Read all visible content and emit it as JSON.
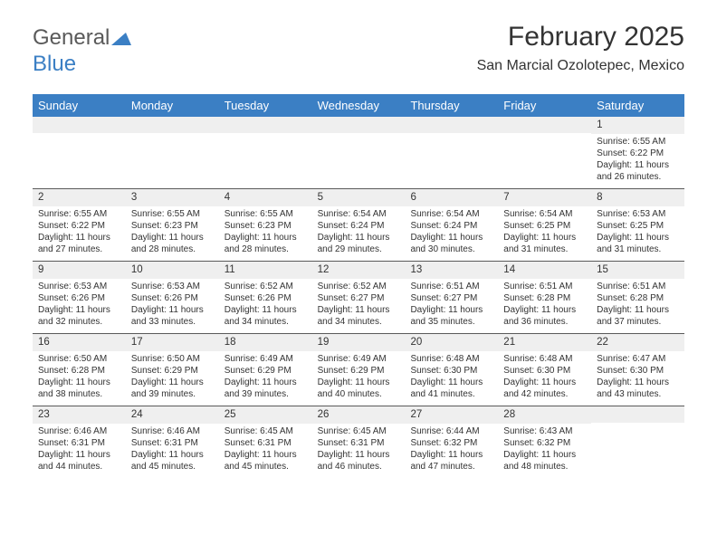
{
  "logo": {
    "text_gray": "General",
    "text_blue": "Blue"
  },
  "header": {
    "month_title": "February 2025",
    "location": "San Marcial Ozolotepec, Mexico"
  },
  "colors": {
    "header_bg": "#3b7fc4",
    "header_text": "#ffffff",
    "daynum_bg": "#efefef",
    "border": "#5a5a5a",
    "text": "#333333",
    "logo_gray": "#5a5a5a",
    "logo_blue": "#3b7fc4"
  },
  "day_names": [
    "Sunday",
    "Monday",
    "Tuesday",
    "Wednesday",
    "Thursday",
    "Friday",
    "Saturday"
  ],
  "weeks": [
    [
      {
        "n": "",
        "sr": "",
        "ss": "",
        "dl": ""
      },
      {
        "n": "",
        "sr": "",
        "ss": "",
        "dl": ""
      },
      {
        "n": "",
        "sr": "",
        "ss": "",
        "dl": ""
      },
      {
        "n": "",
        "sr": "",
        "ss": "",
        "dl": ""
      },
      {
        "n": "",
        "sr": "",
        "ss": "",
        "dl": ""
      },
      {
        "n": "",
        "sr": "",
        "ss": "",
        "dl": ""
      },
      {
        "n": "1",
        "sr": "Sunrise: 6:55 AM",
        "ss": "Sunset: 6:22 PM",
        "dl": "Daylight: 11 hours and 26 minutes."
      }
    ],
    [
      {
        "n": "2",
        "sr": "Sunrise: 6:55 AM",
        "ss": "Sunset: 6:22 PM",
        "dl": "Daylight: 11 hours and 27 minutes."
      },
      {
        "n": "3",
        "sr": "Sunrise: 6:55 AM",
        "ss": "Sunset: 6:23 PM",
        "dl": "Daylight: 11 hours and 28 minutes."
      },
      {
        "n": "4",
        "sr": "Sunrise: 6:55 AM",
        "ss": "Sunset: 6:23 PM",
        "dl": "Daylight: 11 hours and 28 minutes."
      },
      {
        "n": "5",
        "sr": "Sunrise: 6:54 AM",
        "ss": "Sunset: 6:24 PM",
        "dl": "Daylight: 11 hours and 29 minutes."
      },
      {
        "n": "6",
        "sr": "Sunrise: 6:54 AM",
        "ss": "Sunset: 6:24 PM",
        "dl": "Daylight: 11 hours and 30 minutes."
      },
      {
        "n": "7",
        "sr": "Sunrise: 6:54 AM",
        "ss": "Sunset: 6:25 PM",
        "dl": "Daylight: 11 hours and 31 minutes."
      },
      {
        "n": "8",
        "sr": "Sunrise: 6:53 AM",
        "ss": "Sunset: 6:25 PM",
        "dl": "Daylight: 11 hours and 31 minutes."
      }
    ],
    [
      {
        "n": "9",
        "sr": "Sunrise: 6:53 AM",
        "ss": "Sunset: 6:26 PM",
        "dl": "Daylight: 11 hours and 32 minutes."
      },
      {
        "n": "10",
        "sr": "Sunrise: 6:53 AM",
        "ss": "Sunset: 6:26 PM",
        "dl": "Daylight: 11 hours and 33 minutes."
      },
      {
        "n": "11",
        "sr": "Sunrise: 6:52 AM",
        "ss": "Sunset: 6:26 PM",
        "dl": "Daylight: 11 hours and 34 minutes."
      },
      {
        "n": "12",
        "sr": "Sunrise: 6:52 AM",
        "ss": "Sunset: 6:27 PM",
        "dl": "Daylight: 11 hours and 34 minutes."
      },
      {
        "n": "13",
        "sr": "Sunrise: 6:51 AM",
        "ss": "Sunset: 6:27 PM",
        "dl": "Daylight: 11 hours and 35 minutes."
      },
      {
        "n": "14",
        "sr": "Sunrise: 6:51 AM",
        "ss": "Sunset: 6:28 PM",
        "dl": "Daylight: 11 hours and 36 minutes."
      },
      {
        "n": "15",
        "sr": "Sunrise: 6:51 AM",
        "ss": "Sunset: 6:28 PM",
        "dl": "Daylight: 11 hours and 37 minutes."
      }
    ],
    [
      {
        "n": "16",
        "sr": "Sunrise: 6:50 AM",
        "ss": "Sunset: 6:28 PM",
        "dl": "Daylight: 11 hours and 38 minutes."
      },
      {
        "n": "17",
        "sr": "Sunrise: 6:50 AM",
        "ss": "Sunset: 6:29 PM",
        "dl": "Daylight: 11 hours and 39 minutes."
      },
      {
        "n": "18",
        "sr": "Sunrise: 6:49 AM",
        "ss": "Sunset: 6:29 PM",
        "dl": "Daylight: 11 hours and 39 minutes."
      },
      {
        "n": "19",
        "sr": "Sunrise: 6:49 AM",
        "ss": "Sunset: 6:29 PM",
        "dl": "Daylight: 11 hours and 40 minutes."
      },
      {
        "n": "20",
        "sr": "Sunrise: 6:48 AM",
        "ss": "Sunset: 6:30 PM",
        "dl": "Daylight: 11 hours and 41 minutes."
      },
      {
        "n": "21",
        "sr": "Sunrise: 6:48 AM",
        "ss": "Sunset: 6:30 PM",
        "dl": "Daylight: 11 hours and 42 minutes."
      },
      {
        "n": "22",
        "sr": "Sunrise: 6:47 AM",
        "ss": "Sunset: 6:30 PM",
        "dl": "Daylight: 11 hours and 43 minutes."
      }
    ],
    [
      {
        "n": "23",
        "sr": "Sunrise: 6:46 AM",
        "ss": "Sunset: 6:31 PM",
        "dl": "Daylight: 11 hours and 44 minutes."
      },
      {
        "n": "24",
        "sr": "Sunrise: 6:46 AM",
        "ss": "Sunset: 6:31 PM",
        "dl": "Daylight: 11 hours and 45 minutes."
      },
      {
        "n": "25",
        "sr": "Sunrise: 6:45 AM",
        "ss": "Sunset: 6:31 PM",
        "dl": "Daylight: 11 hours and 45 minutes."
      },
      {
        "n": "26",
        "sr": "Sunrise: 6:45 AM",
        "ss": "Sunset: 6:31 PM",
        "dl": "Daylight: 11 hours and 46 minutes."
      },
      {
        "n": "27",
        "sr": "Sunrise: 6:44 AM",
        "ss": "Sunset: 6:32 PM",
        "dl": "Daylight: 11 hours and 47 minutes."
      },
      {
        "n": "28",
        "sr": "Sunrise: 6:43 AM",
        "ss": "Sunset: 6:32 PM",
        "dl": "Daylight: 11 hours and 48 minutes."
      },
      {
        "n": "",
        "sr": "",
        "ss": "",
        "dl": ""
      }
    ]
  ]
}
